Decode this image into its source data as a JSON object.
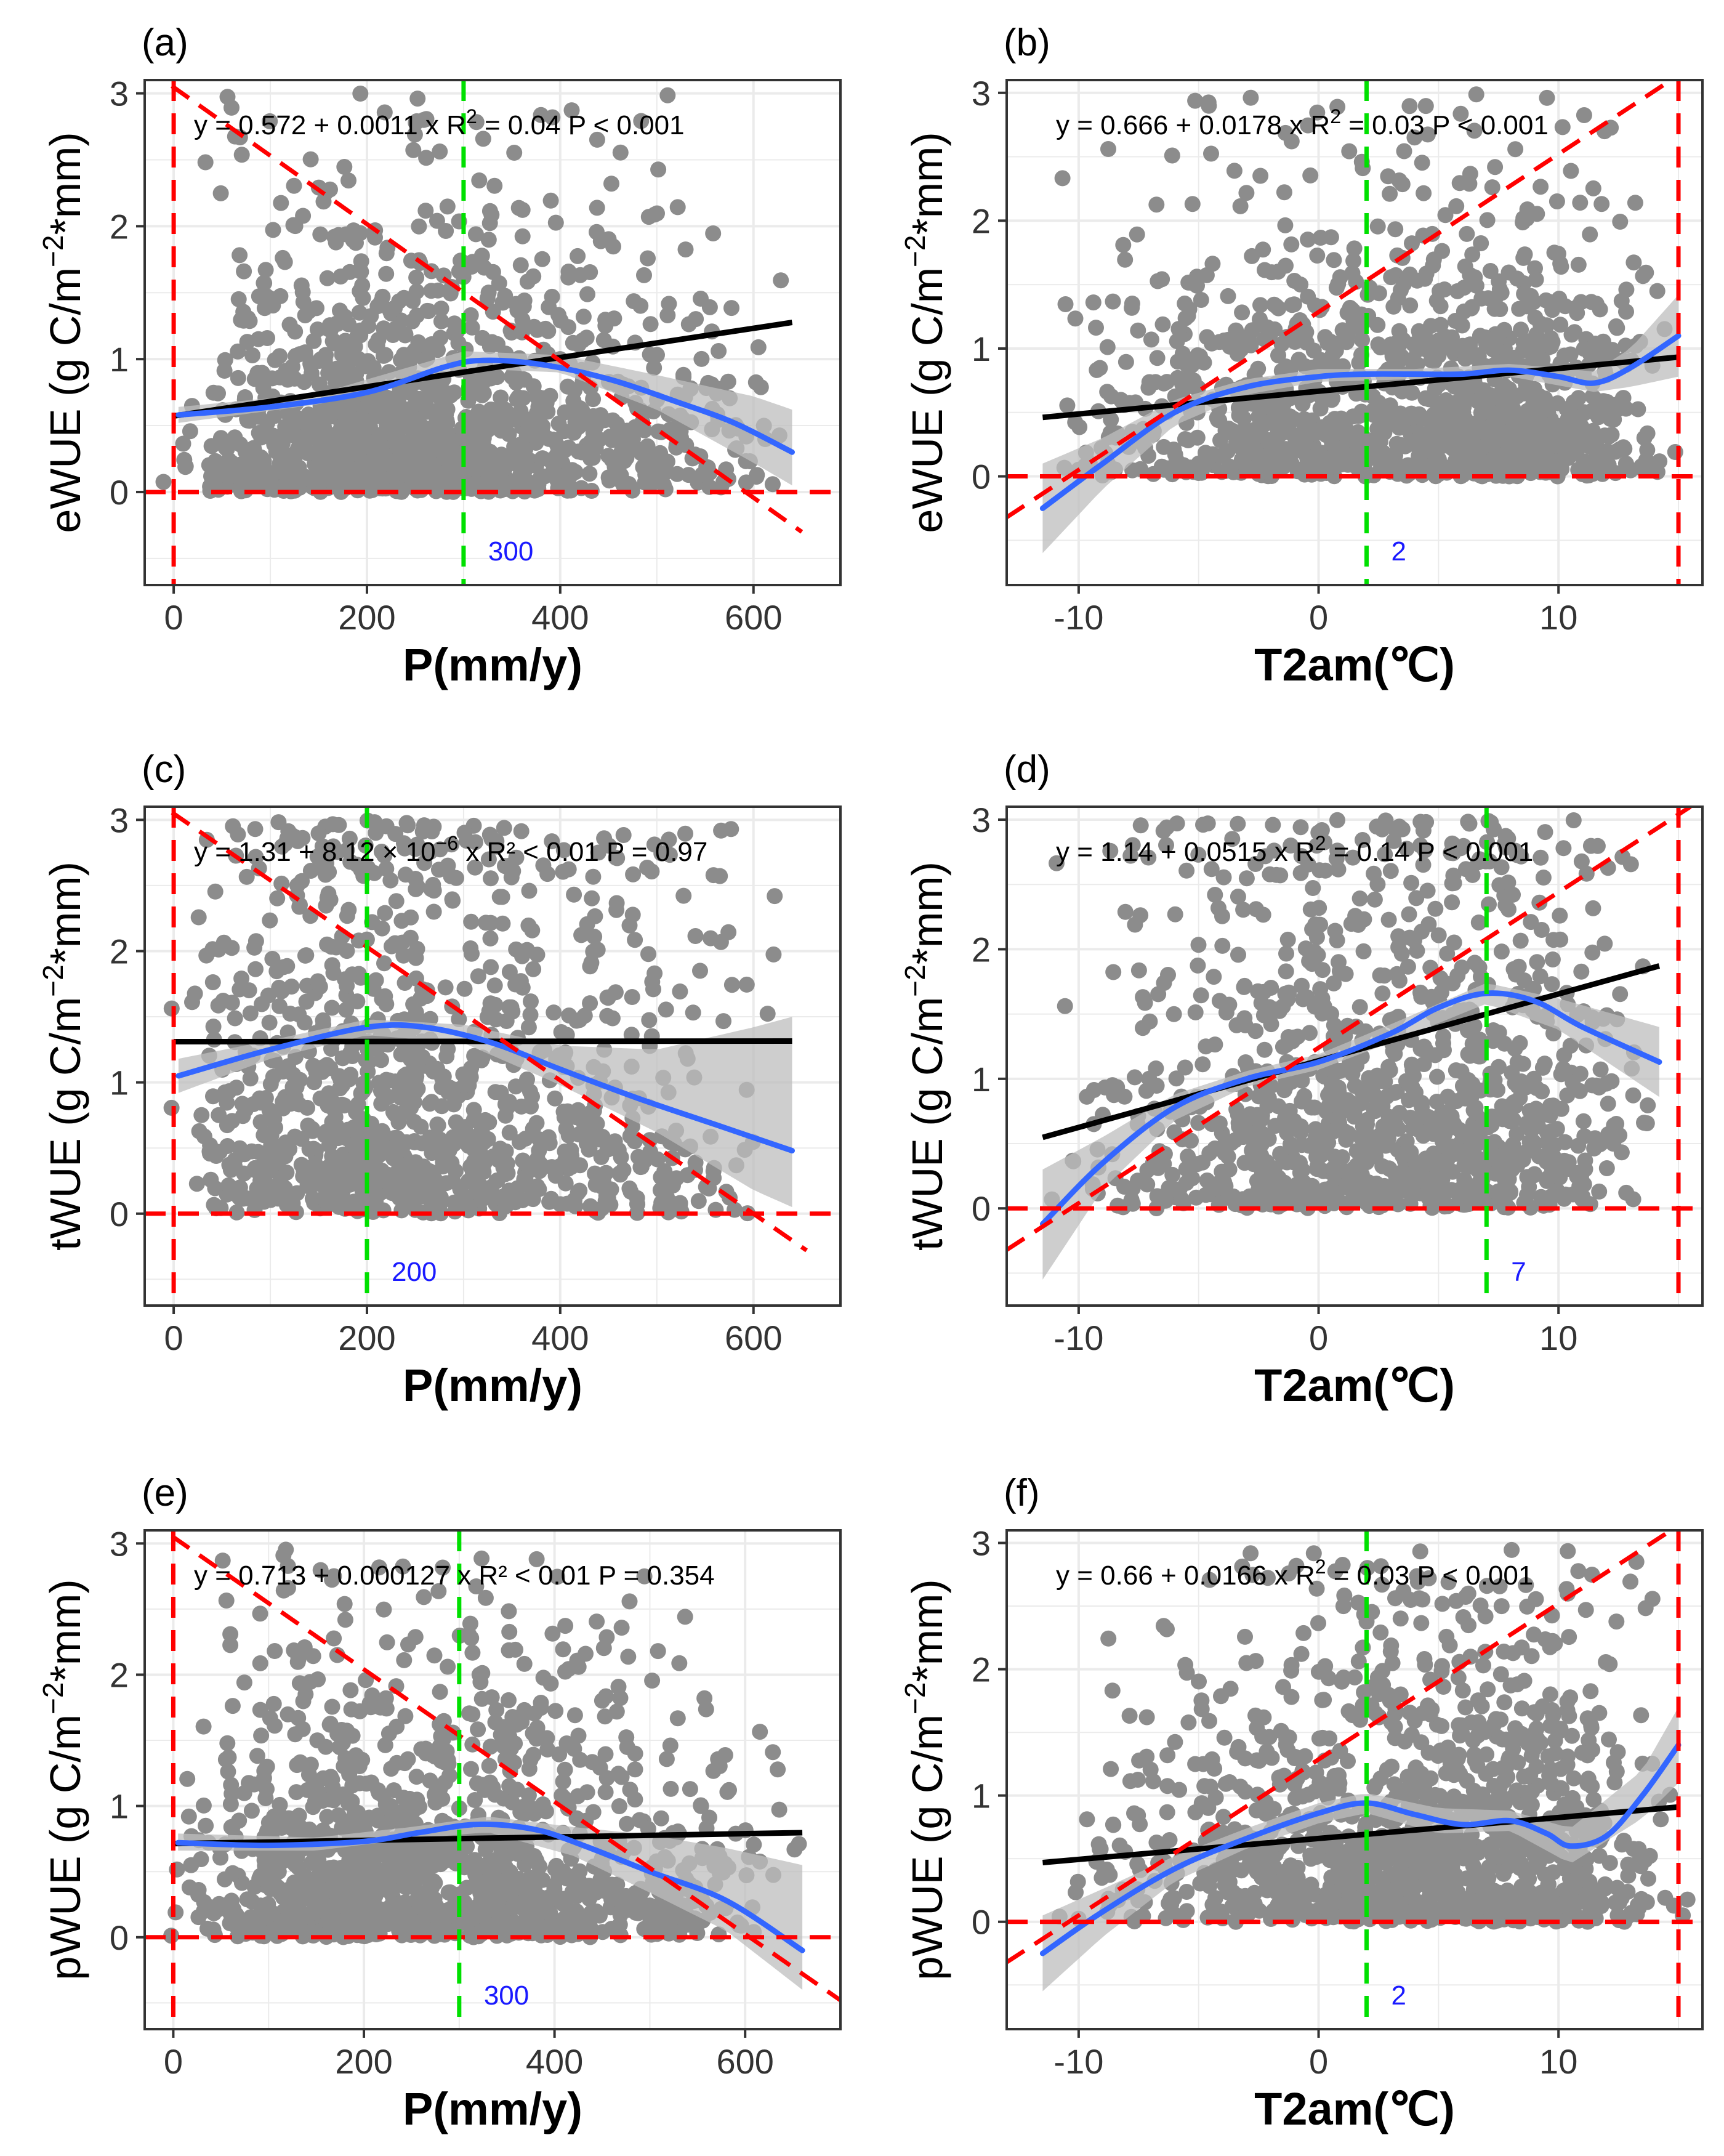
{
  "figure": {
    "panel_count": 6
  },
  "colors": {
    "points": "#8c8c8c",
    "linear_fit": "#000000",
    "smooth_fit": "#3366ff",
    "confidence_band": "#bdbdbd",
    "reference_lines": "#ff0000",
    "threshold_line": "#00e000",
    "threshold_label": "#1a1aff",
    "grid": "#ebebeb",
    "panel_border": "#333333"
  },
  "chart_data": [
    {
      "id": "a",
      "tag": "(a)",
      "type": "scatter",
      "xlabel": "P(mm/y)",
      "ylabel": "eWUE  (g C/m",
      "ylabel_sup": "−2",
      "ylabel_tail": "*mm)",
      "xlim": [
        -30,
        690
      ],
      "ylim": [
        -0.7,
        3.1
      ],
      "xticks": [
        0,
        200,
        400,
        600
      ],
      "xtick_labels": [
        "0",
        "200",
        "400",
        "600"
      ],
      "yticks": [
        0,
        1,
        2,
        3
      ],
      "ytick_labels": [
        "0",
        "1",
        "2",
        "3"
      ],
      "equation": {
        "pre": "y = 0.572 + 0.0011 x   R",
        "sup": "2",
        "post": " = 0.04    P < 0.001"
      },
      "linear_fit": {
        "intercept": 0.572,
        "slope": 0.0011,
        "x_range": [
          0,
          640
        ]
      },
      "smooth": {
        "x": [
          5,
          100,
          200,
          280,
          320,
          380,
          450,
          520,
          580,
          640
        ],
        "y": [
          0.58,
          0.64,
          0.75,
          0.94,
          0.99,
          0.96,
          0.85,
          0.68,
          0.52,
          0.3
        ]
      },
      "band": {
        "x": [
          5,
          150,
          300,
          400,
          500,
          600,
          640
        ],
        "lower": [
          0.52,
          0.66,
          0.93,
          0.9,
          0.62,
          0.22,
          0.05
        ],
        "upper": [
          0.64,
          0.74,
          1.06,
          1.03,
          0.88,
          0.72,
          0.62
        ]
      },
      "ref_vertical_x": [
        0
      ],
      "ref_horizontal_y": 0,
      "ref_diagonal": {
        "x1": -30,
        "y1": 3.2,
        "x2": 650,
        "y2": -0.3
      },
      "threshold": {
        "x": 300,
        "label": "300"
      },
      "scatter": {
        "count": 1300,
        "seed": 11,
        "x_range": [
          0,
          640
        ],
        "x_mode": 180,
        "y_max": 3.0,
        "y_scale": 0.75
      }
    },
    {
      "id": "b",
      "tag": "(b)",
      "type": "scatter",
      "xlabel": "T2am(℃)",
      "ylabel": "eWUE  (g C/m",
      "ylabel_sup": "−2",
      "ylabel_tail": "*mm)",
      "xlim": [
        -13,
        16
      ],
      "ylim": [
        -0.85,
        3.1
      ],
      "xticks": [
        -10,
        0,
        10
      ],
      "xtick_labels": [
        "-10",
        "0",
        "10"
      ],
      "yticks": [
        0,
        1,
        2,
        3
      ],
      "ytick_labels": [
        "0",
        "1",
        "2",
        "3"
      ],
      "equation": {
        "pre": "y = 0.666 + 0.0178 x   R",
        "sup": "2",
        "post": " = 0.03    P < 0.001"
      },
      "linear_fit": {
        "intercept": 0.666,
        "slope": 0.0178,
        "x_range": [
          -11.5,
          15
        ]
      },
      "smooth": {
        "x": [
          -11.5,
          -9,
          -6,
          -3,
          0,
          2,
          4,
          6,
          8,
          10,
          11.5,
          13,
          15
        ],
        "y": [
          -0.25,
          0.1,
          0.5,
          0.7,
          0.78,
          0.8,
          0.8,
          0.8,
          0.83,
          0.78,
          0.73,
          0.85,
          1.1
        ]
      },
      "band": {
        "x": [
          -11.5,
          -9,
          -6,
          -3,
          0,
          4,
          8,
          11.5,
          13,
          15
        ],
        "lower": [
          -0.6,
          -0.1,
          0.4,
          0.64,
          0.74,
          0.76,
          0.78,
          0.66,
          0.7,
          0.78
        ],
        "upper": [
          0.1,
          0.3,
          0.6,
          0.76,
          0.84,
          0.84,
          0.88,
          0.82,
          1.0,
          1.42
        ]
      },
      "ref_vertical_x": [
        15
      ],
      "ref_horizontal_y": 0,
      "ref_diagonal": {
        "x1": -13,
        "y1": -0.32,
        "x2": 15.5,
        "y2": 3.2
      },
      "threshold": {
        "x": 2,
        "label": "2"
      },
      "scatter": {
        "count": 1300,
        "seed": 23,
        "x_range": [
          -11.5,
          15
        ],
        "x_mode": 8,
        "y_max": 3.0,
        "y_scale": 0.85
      }
    },
    {
      "id": "c",
      "tag": "(c)",
      "type": "scatter",
      "xlabel": "P(mm/y)",
      "ylabel": "tWUE  (g C/m",
      "ylabel_sup": "−2",
      "ylabel_tail": "*mm)",
      "xlim": [
        -30,
        690
      ],
      "ylim": [
        -0.7,
        3.1
      ],
      "xticks": [
        0,
        200,
        400,
        600
      ],
      "xtick_labels": [
        "0",
        "200",
        "400",
        "600"
      ],
      "yticks": [
        0,
        1,
        2,
        3
      ],
      "ytick_labels": [
        "0",
        "1",
        "2",
        "3"
      ],
      "equation": {
        "pre": "y = 1.31 + 8.12 × 10",
        "sup": "−6",
        "post": " x   R² < 0.01    P = 0.97"
      },
      "linear_fit": {
        "intercept": 1.31,
        "slope": 8.12e-06,
        "x_range": [
          0,
          640
        ]
      },
      "smooth": {
        "x": [
          5,
          100,
          200,
          260,
          330,
          400,
          480,
          560,
          640
        ],
        "y": [
          1.05,
          1.25,
          1.42,
          1.42,
          1.3,
          1.1,
          0.88,
          0.68,
          0.48
        ]
      },
      "band": {
        "x": [
          5,
          100,
          200,
          300,
          400,
          500,
          600,
          640
        ],
        "lower": [
          0.92,
          1.18,
          1.36,
          1.3,
          0.98,
          0.62,
          0.18,
          0.05
        ],
        "upper": [
          1.18,
          1.32,
          1.48,
          1.44,
          1.28,
          1.25,
          1.42,
          1.5
        ]
      },
      "ref_vertical_x": [
        0
      ],
      "ref_horizontal_y": 0,
      "ref_diagonal": {
        "x1": -30,
        "y1": 3.2,
        "x2": 655,
        "y2": -0.28
      },
      "threshold": {
        "x": 200,
        "label": "200"
      },
      "scatter": {
        "count": 1100,
        "seed": 37,
        "x_range": [
          0,
          640
        ],
        "x_mode": 170,
        "y_max": 3.0,
        "y_scale": 1.3
      }
    },
    {
      "id": "d",
      "tag": "(d)",
      "type": "scatter",
      "xlabel": "T2am(℃)",
      "ylabel": "tWUE  (g C/m",
      "ylabel_sup": "−2",
      "ylabel_tail": "*mm)",
      "xlim": [
        -13,
        16
      ],
      "ylim": [
        -0.75,
        3.1
      ],
      "xticks": [
        -10,
        0,
        10
      ],
      "xtick_labels": [
        "-10",
        "0",
        "10"
      ],
      "yticks": [
        0,
        1,
        2,
        3
      ],
      "ytick_labels": [
        "0",
        "1",
        "2",
        "3"
      ],
      "equation": {
        "pre": "y = 1.14 + 0.0515 x   R",
        "sup": "2",
        "post": " = 0.14    P < 0.001"
      },
      "linear_fit": {
        "intercept": 1.14,
        "slope": 0.0515,
        "x_range": [
          -11.5,
          14.2
        ]
      },
      "smooth": {
        "x": [
          -11.5,
          -9,
          -6,
          -3,
          0,
          3,
          5,
          7,
          9,
          11,
          14.2
        ],
        "y": [
          -0.12,
          0.35,
          0.78,
          1.0,
          1.13,
          1.35,
          1.55,
          1.66,
          1.6,
          1.4,
          1.13
        ]
      },
      "band": {
        "x": [
          -11.5,
          -9,
          -6,
          -3,
          0,
          3,
          7,
          10,
          14.2
        ],
        "lower": [
          -0.55,
          0.15,
          0.68,
          0.94,
          1.07,
          1.28,
          1.58,
          1.38,
          0.86
        ],
        "upper": [
          0.3,
          0.55,
          0.88,
          1.06,
          1.19,
          1.42,
          1.74,
          1.62,
          1.4
        ]
      },
      "ref_vertical_x": [
        15
      ],
      "ref_horizontal_y": 0,
      "ref_diagonal": {
        "x1": -13,
        "y1": -0.32,
        "x2": 15.5,
        "y2": 3.1
      },
      "threshold": {
        "x": 7,
        "label": "7"
      },
      "scatter": {
        "count": 1100,
        "seed": 53,
        "x_range": [
          -11.5,
          14.2
        ],
        "x_mode": 6,
        "y_max": 3.0,
        "y_scale": 1.3
      }
    },
    {
      "id": "e",
      "tag": "(e)",
      "type": "scatter",
      "xlabel": "P(mm/y)",
      "ylabel": "pWUE  (g C/m",
      "ylabel_sup": "−2",
      "ylabel_tail": "*mm)",
      "xlim": [
        -30,
        700
      ],
      "ylim": [
        -0.7,
        3.1
      ],
      "xticks": [
        0,
        200,
        400,
        600
      ],
      "xtick_labels": [
        "0",
        "200",
        "400",
        "600"
      ],
      "yticks": [
        0,
        1,
        2,
        3
      ],
      "ytick_labels": [
        "0",
        "1",
        "2",
        "3"
      ],
      "equation": {
        "pre": "y = 0.713 + 0.000127 x   R² < 0.01    P = 0.354",
        "sup": "",
        "post": ""
      },
      "linear_fit": {
        "intercept": 0.713,
        "slope": 0.000127,
        "x_range": [
          0,
          660
        ]
      },
      "smooth": {
        "x": [
          5,
          100,
          200,
          260,
          320,
          380,
          430,
          500,
          580,
          660
        ],
        "y": [
          0.72,
          0.7,
          0.73,
          0.8,
          0.86,
          0.82,
          0.7,
          0.5,
          0.28,
          -0.1
        ]
      },
      "band": {
        "x": [
          5,
          150,
          250,
          330,
          420,
          500,
          580,
          660
        ],
        "lower": [
          0.66,
          0.66,
          0.75,
          0.8,
          0.62,
          0.34,
          0.05,
          -0.4
        ],
        "upper": [
          0.79,
          0.76,
          0.84,
          0.92,
          0.84,
          0.78,
          0.68,
          0.55
        ]
      },
      "ref_vertical_x": [
        0
      ],
      "ref_horizontal_y": 0,
      "ref_diagonal": {
        "x1": -30,
        "y1": 3.2,
        "x2": 700,
        "y2": -0.48
      },
      "threshold": {
        "x": 300,
        "label": "300"
      },
      "scatter": {
        "count": 1300,
        "seed": 71,
        "x_range": [
          0,
          660
        ],
        "x_mode": 180,
        "y_max": 3.0,
        "y_scale": 0.8
      }
    },
    {
      "id": "f",
      "tag": "(f)",
      "type": "scatter",
      "xlabel": "T2am(℃)",
      "ylabel": "pWUE  (g C/m",
      "ylabel_sup": "−2",
      "ylabel_tail": "*mm)",
      "xlim": [
        -13,
        16
      ],
      "ylim": [
        -0.85,
        3.1
      ],
      "xticks": [
        -10,
        0,
        10
      ],
      "xtick_labels": [
        "-10",
        "0",
        "10"
      ],
      "yticks": [
        0,
        1,
        2,
        3
      ],
      "ytick_labels": [
        "0",
        "1",
        "2",
        "3"
      ],
      "equation": {
        "pre": "y = 0.66 + 0.0166 x   R",
        "sup": "2",
        "post": " = 0.03    P < 0.001"
      },
      "linear_fit": {
        "intercept": 0.66,
        "slope": 0.0166,
        "x_range": [
          -11.5,
          15
        ]
      },
      "smooth": {
        "x": [
          -11.5,
          -9,
          -6,
          -3,
          0,
          2,
          4,
          6,
          8,
          9.5,
          10.5,
          12,
          13.5,
          15
        ],
        "y": [
          -0.25,
          0.08,
          0.42,
          0.66,
          0.86,
          0.94,
          0.85,
          0.77,
          0.8,
          0.7,
          0.6,
          0.68,
          1.0,
          1.4
        ]
      },
      "band": {
        "x": [
          -11.5,
          -9,
          -6,
          -3,
          0,
          2,
          5,
          8,
          10.5,
          13.5,
          15
        ],
        "lower": [
          -0.55,
          -0.12,
          0.32,
          0.58,
          0.78,
          0.86,
          0.7,
          0.72,
          0.46,
          0.82,
          1.1
        ],
        "upper": [
          0.05,
          0.26,
          0.52,
          0.74,
          0.94,
          1.02,
          0.9,
          0.88,
          0.74,
          1.2,
          1.7
        ]
      },
      "ref_vertical_x": [
        15
      ],
      "ref_horizontal_y": 0,
      "ref_diagonal": {
        "x1": -13,
        "y1": -0.32,
        "x2": 15.5,
        "y2": 3.2
      },
      "threshold": {
        "x": 2,
        "label": "2"
      },
      "scatter": {
        "count": 1300,
        "seed": 89,
        "x_range": [
          -11.5,
          15
        ],
        "x_mode": 8,
        "y_max": 3.0,
        "y_scale": 0.9
      }
    }
  ]
}
